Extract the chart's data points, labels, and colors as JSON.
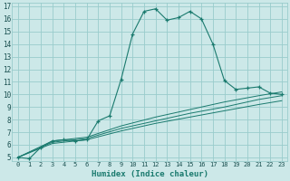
{
  "xlabel": "Humidex (Indice chaleur)",
  "bg_color": "#cce8e8",
  "line_color": "#1a7a6e",
  "grid_color": "#99cccc",
  "xlim": [
    -0.5,
    23.5
  ],
  "ylim": [
    4.7,
    17.3
  ],
  "xtick_labels": [
    "0",
    "1",
    "2",
    "3",
    "4",
    "5",
    "6",
    "7",
    "8",
    "9",
    "10",
    "11",
    "12",
    "13",
    "14",
    "15",
    "16",
    "17",
    "18",
    "19",
    "20",
    "21",
    "22",
    "23"
  ],
  "ytick_labels": [
    "5",
    "6",
    "7",
    "8",
    "9",
    "10",
    "11",
    "12",
    "13",
    "14",
    "15",
    "16",
    "17"
  ],
  "series": [
    [
      0,
      5.0
    ],
    [
      1,
      4.9
    ],
    [
      2,
      5.8
    ],
    [
      3,
      6.3
    ],
    [
      4,
      6.4
    ],
    [
      5,
      6.3
    ],
    [
      6,
      6.4
    ],
    [
      7,
      7.9
    ],
    [
      8,
      8.3
    ],
    [
      9,
      11.2
    ],
    [
      10,
      14.8
    ],
    [
      11,
      16.6
    ],
    [
      12,
      16.8
    ],
    [
      13,
      15.9
    ],
    [
      14,
      16.1
    ],
    [
      15,
      16.6
    ],
    [
      16,
      16.0
    ],
    [
      17,
      14.0
    ],
    [
      18,
      11.1
    ],
    [
      19,
      10.4
    ],
    [
      20,
      10.5
    ],
    [
      21,
      10.6
    ],
    [
      22,
      10.1
    ],
    [
      23,
      10.0
    ]
  ],
  "series2": [
    [
      0,
      5.0
    ],
    [
      3,
      6.3
    ],
    [
      6,
      6.6
    ],
    [
      9,
      7.5
    ],
    [
      12,
      8.2
    ],
    [
      15,
      8.8
    ],
    [
      18,
      9.4
    ],
    [
      21,
      9.9
    ],
    [
      23,
      10.2
    ]
  ],
  "series3": [
    [
      0,
      5.0
    ],
    [
      3,
      6.2
    ],
    [
      6,
      6.5
    ],
    [
      9,
      7.3
    ],
    [
      12,
      7.9
    ],
    [
      15,
      8.5
    ],
    [
      18,
      9.0
    ],
    [
      21,
      9.6
    ],
    [
      23,
      9.9
    ]
  ],
  "series4": [
    [
      0,
      5.0
    ],
    [
      3,
      6.1
    ],
    [
      6,
      6.4
    ],
    [
      9,
      7.1
    ],
    [
      12,
      7.7
    ],
    [
      15,
      8.2
    ],
    [
      18,
      8.7
    ],
    [
      21,
      9.2
    ],
    [
      23,
      9.5
    ]
  ]
}
